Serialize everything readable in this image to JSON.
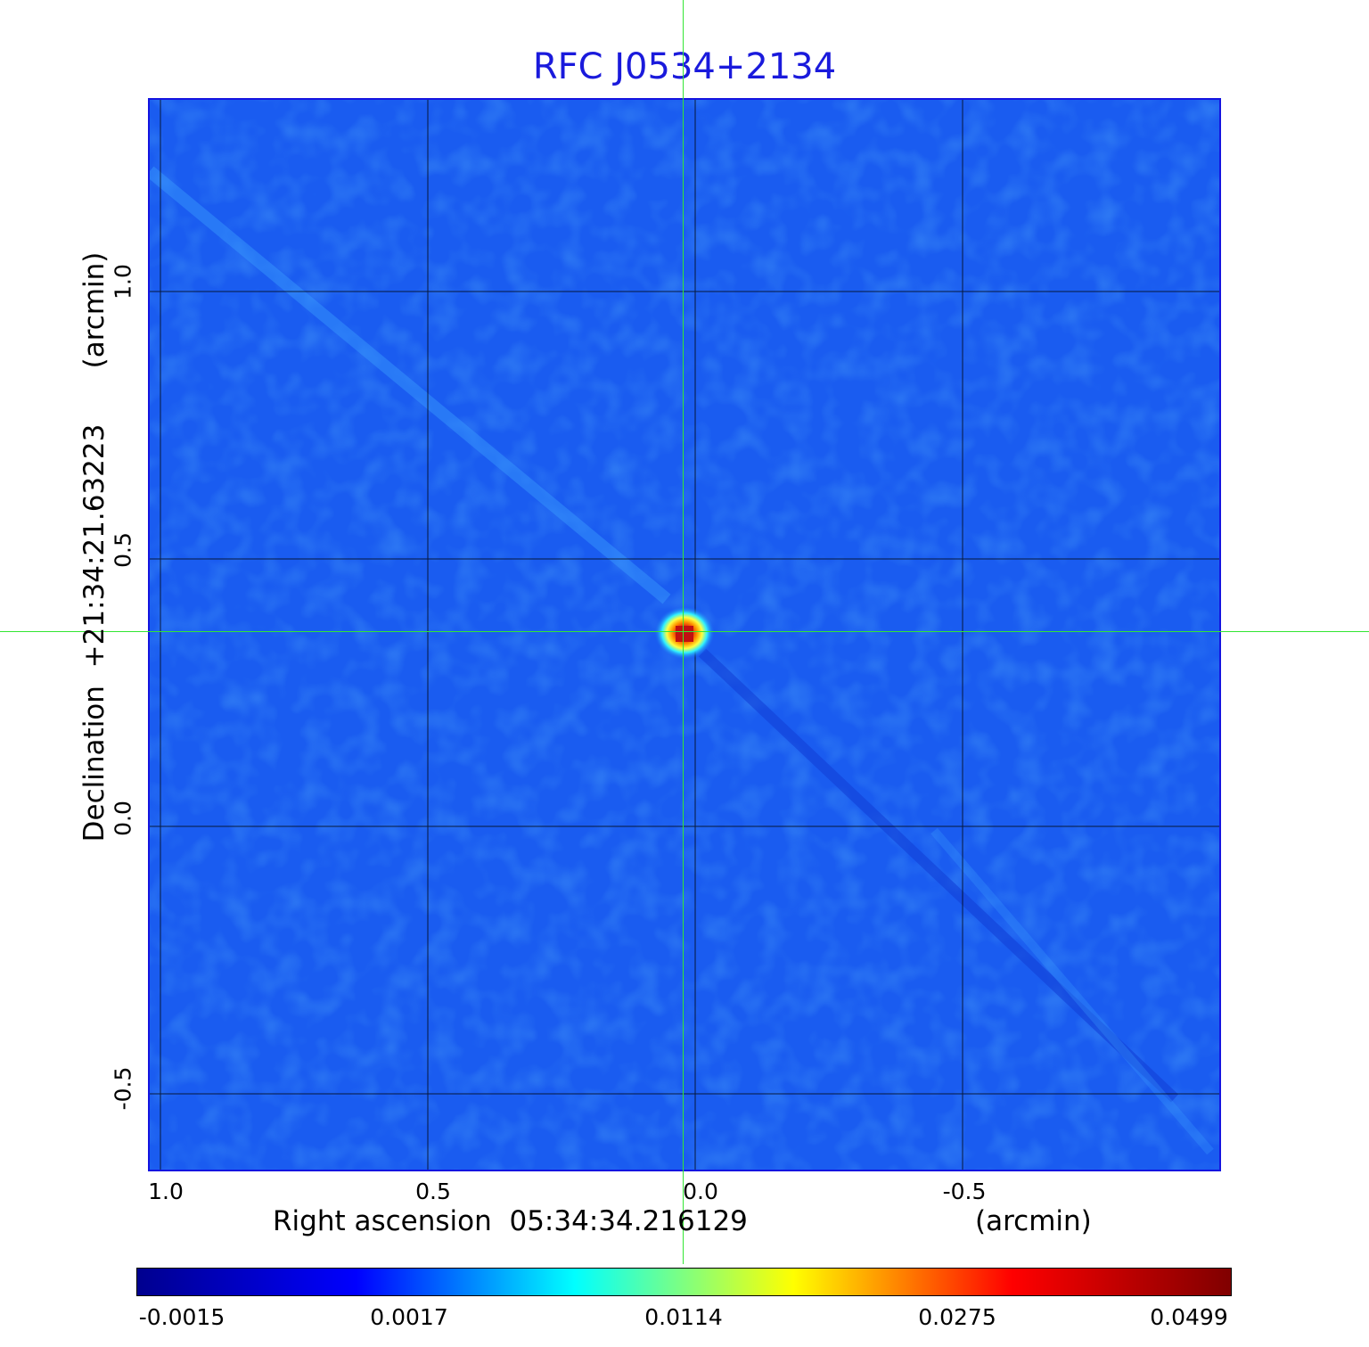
{
  "title": "RFC J0534+2134",
  "axes": {
    "x_label": "Right ascension  05:34:34.216129",
    "x_unit": "(arcmin)",
    "y_label": "Declination  +21:34:21.63223",
    "y_unit": "(arcmin)",
    "x_ticks": [
      "1.0",
      "0.5",
      "0.0",
      "-0.5"
    ],
    "y_ticks": [
      "1.0",
      "0.5",
      "0.0",
      "-0.5"
    ]
  },
  "colorbar": {
    "ticks": [
      "-0.0015",
      "0.0017",
      "0.0114",
      "0.0275",
      "0.0499"
    ],
    "colormap": [
      "#00008f",
      "#0000ff",
      "#00ffff",
      "#ffff00",
      "#ff0000",
      "#800000"
    ]
  },
  "colors": {
    "title": "#1a1adc",
    "frame": "#1414e0",
    "background_map": "#1a5cf0",
    "crosshair": "#33e633",
    "grid": "#000000"
  }
}
